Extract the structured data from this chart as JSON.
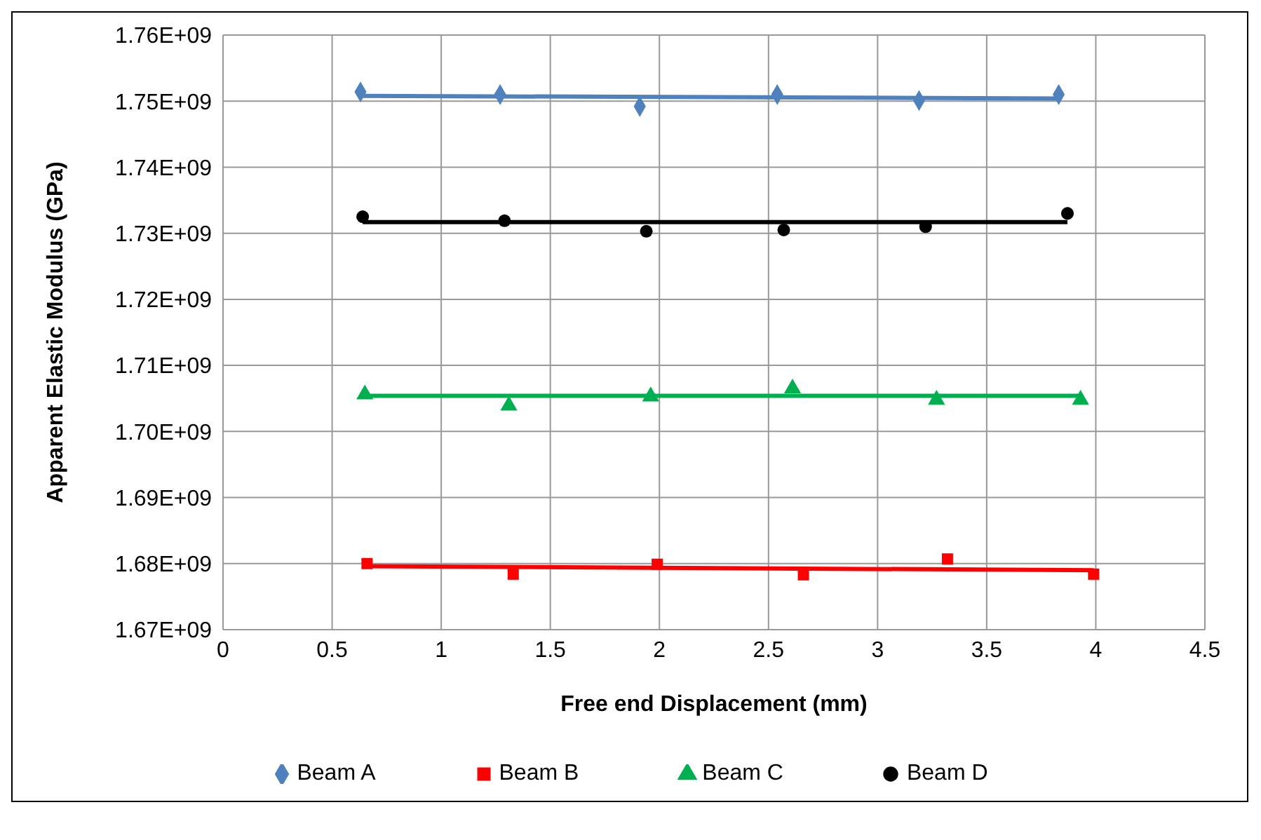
{
  "chart_data": {
    "type": "scatter",
    "xlabel": "Free end Displacement (mm)",
    "ylabel": "Apparent Elastic  Modulus (GPa)",
    "xlim": [
      0,
      4.5
    ],
    "xticks": [
      0,
      0.5,
      1,
      1.5,
      2,
      2.5,
      3,
      3.5,
      4,
      4.5
    ],
    "ylim": [
      1670000000,
      1760000000
    ],
    "yticks": [
      {
        "value": 1670000000,
        "label": "1.67E+09"
      },
      {
        "value": 1680000000,
        "label": "1.68E+09"
      },
      {
        "value": 1690000000,
        "label": "1.69E+09"
      },
      {
        "value": 1700000000,
        "label": "1.70E+09"
      },
      {
        "value": 1710000000,
        "label": "1.71E+09"
      },
      {
        "value": 1720000000,
        "label": "1.72E+09"
      },
      {
        "value": 1730000000,
        "label": "1.73E+09"
      },
      {
        "value": 1740000000,
        "label": "1.74E+09"
      },
      {
        "value": 1750000000,
        "label": "1.75E+09"
      },
      {
        "value": 1760000000,
        "label": "1.76E+09"
      }
    ],
    "grid": true,
    "legend": "bottom",
    "series": [
      {
        "name": "Beam A",
        "color": "#4f81bd",
        "marker": "diamond",
        "x": [
          0.63,
          1.27,
          1.91,
          2.54,
          3.19,
          3.83
        ],
        "values": [
          1751400000,
          1751000000,
          1749200000,
          1751000000,
          1750100000,
          1751000000
        ]
      },
      {
        "name": "Beam B",
        "color": "#ff0000",
        "marker": "square",
        "x": [
          0.66,
          1.33,
          1.99,
          2.66,
          3.32,
          3.99
        ],
        "values": [
          1680000000,
          1678400000,
          1679900000,
          1678300000,
          1680700000,
          1678400000
        ]
      },
      {
        "name": "Beam C",
        "color": "#00b050",
        "marker": "triangle",
        "x": [
          0.65,
          1.31,
          1.96,
          2.61,
          3.27,
          3.93
        ],
        "values": [
          1705600000,
          1703900000,
          1705300000,
          1706500000,
          1704800000,
          1704800000
        ]
      },
      {
        "name": "Beam D",
        "color": "#000000",
        "marker": "circle",
        "x": [
          0.64,
          1.29,
          1.94,
          2.57,
          3.22,
          3.87
        ],
        "values": [
          1732500000,
          1731900000,
          1730300000,
          1730500000,
          1731000000,
          1733000000
        ]
      },
      {
        "color": "#4f81bd",
        "type": "line",
        "x": [
          0.63,
          3.83
        ],
        "values": [
          1750800000,
          1750400000
        ]
      },
      {
        "color": "#ff0000",
        "type": "line",
        "x": [
          0.66,
          3.99
        ],
        "values": [
          1679600000,
          1679000000
        ]
      },
      {
        "color": "#00b050",
        "type": "line",
        "x": [
          0.65,
          3.93
        ],
        "values": [
          1705400000,
          1705400000
        ]
      },
      {
        "color": "#000000",
        "type": "line",
        "x": [
          0.64,
          3.87
        ],
        "values": [
          1731700000,
          1731700000
        ]
      }
    ]
  }
}
